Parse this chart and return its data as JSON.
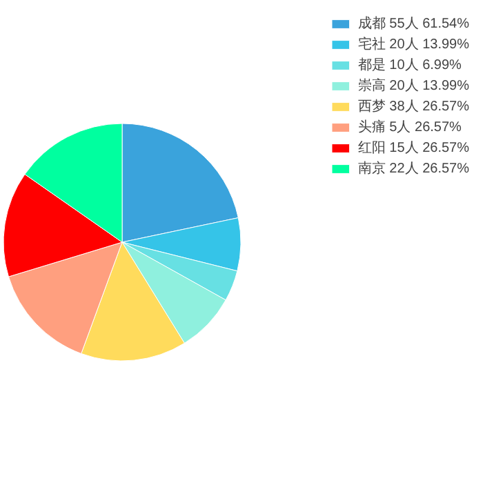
{
  "chart_data": {
    "type": "pie",
    "legend": "top right",
    "categories": [
      "成都 55人 61.54%",
      "宅社 20人 13.99%",
      "都是 10人 6.99%",
      "崇高 20人 13.99%",
      "西梦 38人 26.57%",
      "头痛 5人 26.57%",
      "红阳 15人 26.57%",
      "南京 22人 26.57%"
    ],
    "values": [
      21.7,
      7.2,
      4.2,
      8.1,
      14.4,
      14.7,
      14.4,
      15.3
    ],
    "colors": [
      "#3aa3dc",
      "#35c4e8",
      "#67e0e3",
      "#8ff0de",
      "#ffdb5c",
      "#ff9f7f",
      "#ff0000",
      "#00ff9f"
    ]
  }
}
